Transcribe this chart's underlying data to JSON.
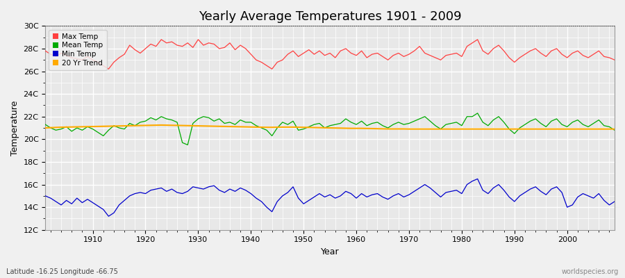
{
  "title": "Yearly Average Temperatures 1901 - 2009",
  "xlabel": "Year",
  "ylabel": "Temperature",
  "subtitle_lat": "Latitude -16.25 Longitude -66.75",
  "watermark": "worldspecies.org",
  "years": [
    1901,
    1902,
    1903,
    1904,
    1905,
    1906,
    1907,
    1908,
    1909,
    1910,
    1911,
    1912,
    1913,
    1914,
    1915,
    1916,
    1917,
    1918,
    1919,
    1920,
    1921,
    1922,
    1923,
    1924,
    1925,
    1926,
    1927,
    1928,
    1929,
    1930,
    1931,
    1932,
    1933,
    1934,
    1935,
    1936,
    1937,
    1938,
    1939,
    1940,
    1941,
    1942,
    1943,
    1944,
    1945,
    1946,
    1947,
    1948,
    1949,
    1950,
    1951,
    1952,
    1953,
    1954,
    1955,
    1956,
    1957,
    1958,
    1959,
    1960,
    1961,
    1962,
    1963,
    1964,
    1965,
    1966,
    1967,
    1968,
    1969,
    1970,
    1971,
    1972,
    1973,
    1974,
    1975,
    1976,
    1977,
    1978,
    1979,
    1980,
    1981,
    1982,
    1983,
    1984,
    1985,
    1986,
    1987,
    1988,
    1989,
    1990,
    1991,
    1992,
    1993,
    1994,
    1995,
    1996,
    1997,
    1998,
    1999,
    2000,
    2001,
    2002,
    2003,
    2004,
    2005,
    2006,
    2007,
    2008,
    2009
  ],
  "max_temp": [
    27.8,
    27.5,
    27.3,
    27.6,
    27.4,
    27.2,
    27.1,
    27.0,
    27.3,
    27.0,
    26.8,
    26.5,
    26.2,
    26.8,
    27.2,
    27.5,
    28.3,
    27.9,
    27.6,
    28.0,
    28.4,
    28.2,
    28.8,
    28.5,
    28.6,
    28.3,
    28.2,
    28.5,
    28.1,
    28.8,
    28.3,
    28.5,
    28.4,
    28.0,
    28.1,
    28.5,
    27.9,
    28.3,
    28.0,
    27.5,
    27.0,
    26.8,
    26.5,
    26.2,
    26.8,
    27.0,
    27.5,
    27.8,
    27.3,
    27.6,
    27.9,
    27.5,
    27.8,
    27.4,
    27.6,
    27.2,
    27.8,
    28.0,
    27.6,
    27.4,
    27.8,
    27.2,
    27.5,
    27.6,
    27.3,
    27.0,
    27.4,
    27.6,
    27.3,
    27.5,
    27.8,
    28.2,
    27.6,
    27.4,
    27.2,
    27.0,
    27.4,
    27.5,
    27.6,
    27.3,
    28.2,
    28.5,
    28.8,
    27.8,
    27.5,
    28.0,
    28.3,
    27.8,
    27.2,
    26.8,
    27.2,
    27.5,
    27.8,
    28.0,
    27.6,
    27.3,
    27.8,
    28.0,
    27.5,
    27.2,
    27.6,
    27.8,
    27.4,
    27.2,
    27.5,
    27.8,
    27.3,
    27.2,
    27.0
  ],
  "mean_temp": [
    21.3,
    21.0,
    20.8,
    20.9,
    21.1,
    20.7,
    21.0,
    20.8,
    21.1,
    20.9,
    20.6,
    20.3,
    20.8,
    21.2,
    21.0,
    20.9,
    21.4,
    21.2,
    21.5,
    21.6,
    21.9,
    21.7,
    22.0,
    21.8,
    21.7,
    21.5,
    19.7,
    19.5,
    21.4,
    21.8,
    22.0,
    21.9,
    21.6,
    21.8,
    21.4,
    21.5,
    21.3,
    21.7,
    21.5,
    21.5,
    21.2,
    21.0,
    20.8,
    20.3,
    21.0,
    21.5,
    21.3,
    21.6,
    20.8,
    20.9,
    21.1,
    21.3,
    21.4,
    21.0,
    21.2,
    21.3,
    21.4,
    21.8,
    21.5,
    21.3,
    21.6,
    21.2,
    21.4,
    21.5,
    21.2,
    21.0,
    21.3,
    21.5,
    21.3,
    21.4,
    21.6,
    21.8,
    22.0,
    21.6,
    21.2,
    20.9,
    21.3,
    21.4,
    21.5,
    21.2,
    22.0,
    22.0,
    22.3,
    21.5,
    21.2,
    21.7,
    22.0,
    21.5,
    20.9,
    20.5,
    21.0,
    21.3,
    21.6,
    21.8,
    21.4,
    21.1,
    21.6,
    21.8,
    21.3,
    21.1,
    21.5,
    21.7,
    21.3,
    21.1,
    21.4,
    21.7,
    21.2,
    21.1,
    20.8
  ],
  "min_temp": [
    15.0,
    14.8,
    14.5,
    14.2,
    14.6,
    14.3,
    14.8,
    14.4,
    14.7,
    14.4,
    14.1,
    13.8,
    13.2,
    13.5,
    14.2,
    14.6,
    15.0,
    15.2,
    15.3,
    15.2,
    15.5,
    15.6,
    15.7,
    15.4,
    15.6,
    15.3,
    15.2,
    15.4,
    15.8,
    15.7,
    15.6,
    15.8,
    15.9,
    15.5,
    15.3,
    15.6,
    15.4,
    15.7,
    15.5,
    15.2,
    14.8,
    14.5,
    14.0,
    13.6,
    14.5,
    15.0,
    15.3,
    15.8,
    14.8,
    14.3,
    14.6,
    14.9,
    15.2,
    14.9,
    15.1,
    14.8,
    15.0,
    15.4,
    15.2,
    14.8,
    15.2,
    14.9,
    15.1,
    15.2,
    14.9,
    14.7,
    15.0,
    15.2,
    14.9,
    15.1,
    15.4,
    15.7,
    16.0,
    15.7,
    15.3,
    14.9,
    15.3,
    15.4,
    15.5,
    15.2,
    16.0,
    16.3,
    16.5,
    15.5,
    15.2,
    15.7,
    16.0,
    15.5,
    14.9,
    14.5,
    15.0,
    15.3,
    15.6,
    15.8,
    15.4,
    15.1,
    15.6,
    15.8,
    15.3,
    14.0,
    14.2,
    14.9,
    15.2,
    15.0,
    14.8,
    15.2,
    14.6,
    14.2,
    14.5
  ],
  "trend_temp": [
    21.0,
    21.02,
    21.04,
    21.06,
    21.07,
    21.08,
    21.09,
    21.1,
    21.11,
    21.12,
    21.13,
    21.14,
    21.15,
    21.16,
    21.17,
    21.18,
    21.19,
    21.2,
    21.21,
    21.22,
    21.23,
    21.24,
    21.25,
    21.24,
    21.23,
    21.22,
    21.21,
    21.2,
    21.19,
    21.18,
    21.17,
    21.16,
    21.15,
    21.14,
    21.13,
    21.12,
    21.11,
    21.1,
    21.09,
    21.08,
    21.07,
    21.06,
    21.05,
    21.05,
    21.06,
    21.07,
    21.07,
    21.07,
    21.06,
    21.05,
    21.04,
    21.03,
    21.02,
    21.01,
    21.0,
    20.99,
    20.98,
    20.97,
    20.96,
    20.96,
    20.96,
    20.95,
    20.94,
    20.93,
    20.92,
    20.91,
    20.91,
    20.91,
    20.91,
    20.9,
    20.9,
    20.9,
    20.9,
    20.9,
    20.9,
    20.9,
    20.9,
    20.9,
    20.9,
    20.9,
    20.9,
    20.9,
    20.9,
    20.9,
    20.9,
    20.9,
    20.9,
    20.9,
    20.9,
    20.9,
    20.9,
    20.9,
    20.9,
    20.9,
    20.9,
    20.9,
    20.9,
    20.9,
    20.9,
    20.9,
    20.9,
    20.9,
    20.9,
    20.9,
    20.9,
    20.9,
    20.9,
    20.9,
    20.9
  ],
  "max_color": "#ff4040",
  "mean_color": "#00aa00",
  "min_color": "#0000cc",
  "trend_color": "#ffaa00",
  "fig_bg_color": "#f0f0f0",
  "plot_bg_color": "#e8e8e8",
  "ylim_min": 12,
  "ylim_max": 30,
  "yticks": [
    12,
    14,
    16,
    18,
    20,
    22,
    24,
    26,
    28,
    30
  ],
  "ytick_labels": [
    "12C",
    "14C",
    "16C",
    "18C",
    "20C",
    "22C",
    "24C",
    "26C",
    "28C",
    "30C"
  ],
  "xticks": [
    1910,
    1920,
    1930,
    1940,
    1950,
    1960,
    1970,
    1980,
    1990,
    2000
  ]
}
